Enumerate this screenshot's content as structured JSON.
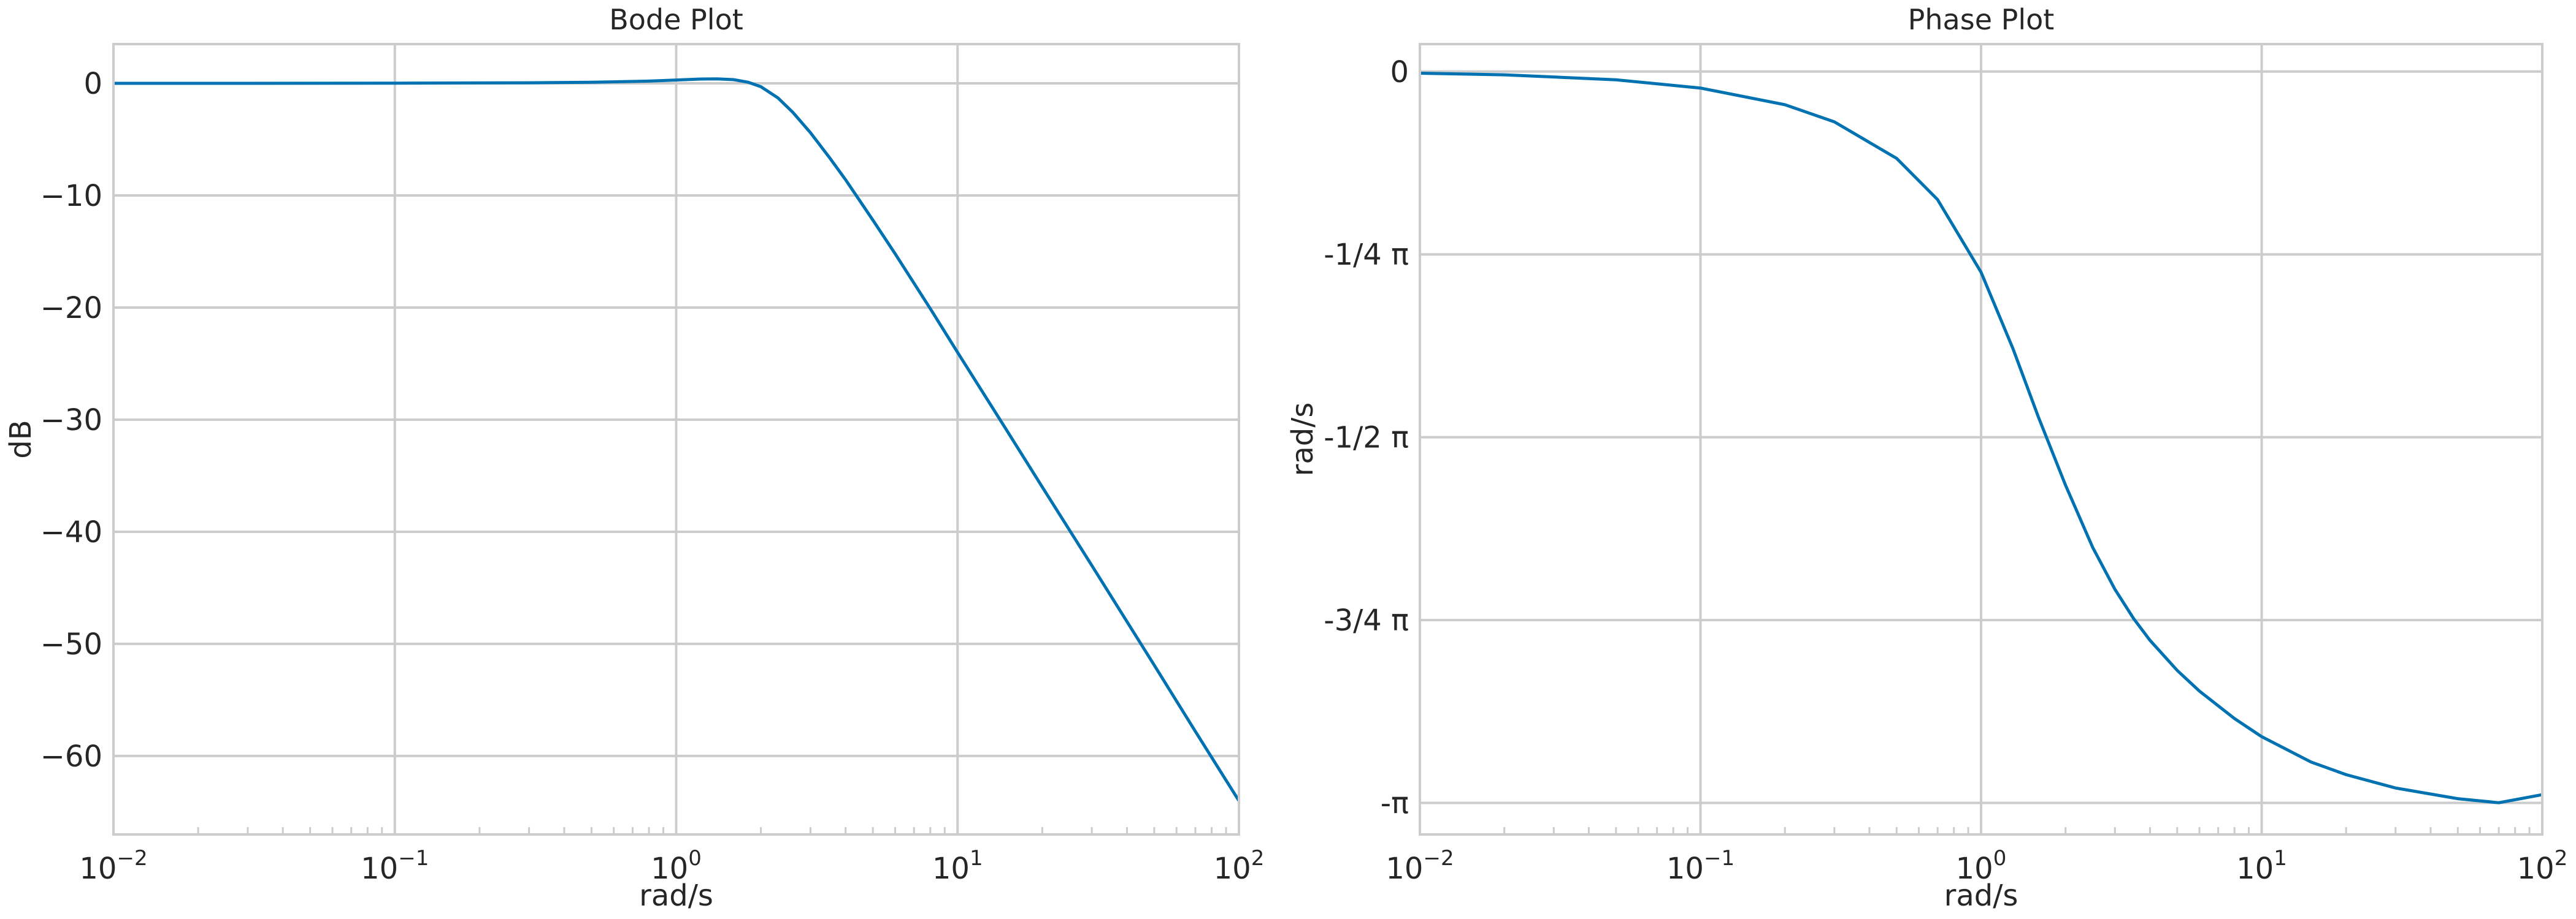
{
  "chart_data": [
    {
      "type": "line",
      "title": "Bode Plot",
      "xlabel": "rad/s",
      "ylabel": "dB",
      "xscale": "log",
      "xlim": [
        0.01,
        100
      ],
      "ylim": [
        -67,
        3.5
      ],
      "grid": true,
      "x_ticks": [
        {
          "value": 0.01,
          "base": "10",
          "exp": "−2"
        },
        {
          "value": 0.1,
          "base": "10",
          "exp": "−1"
        },
        {
          "value": 1,
          "base": "10",
          "exp": "0"
        },
        {
          "value": 10,
          "base": "10",
          "exp": "1"
        },
        {
          "value": 100,
          "base": "10",
          "exp": "2"
        }
      ],
      "y_ticks": [
        {
          "value": 0,
          "label": "0"
        },
        {
          "value": -10,
          "label": "−10"
        },
        {
          "value": -20,
          "label": "−20"
        },
        {
          "value": -30,
          "label": "−30"
        },
        {
          "value": -40,
          "label": "−40"
        },
        {
          "value": -50,
          "label": "−50"
        },
        {
          "value": -60,
          "label": "−60"
        }
      ],
      "series": [
        {
          "color": "#0072B2",
          "x": [
            0.01,
            0.03,
            0.1,
            0.3,
            0.5,
            0.8,
            1.0,
            1.2,
            1.4,
            1.6,
            1.8,
            2.0,
            2.3,
            2.6,
            3.0,
            3.5,
            4.0,
            5.0,
            6.0,
            8.0,
            10,
            15,
            20,
            30,
            50,
            70,
            100
          ],
          "y": [
            0.0,
            0.0,
            0.02,
            0.05,
            0.1,
            0.2,
            0.3,
            0.38,
            0.4,
            0.33,
            0.1,
            -0.3,
            -1.3,
            -2.6,
            -4.4,
            -6.6,
            -8.6,
            -12.2,
            -15.2,
            -20.1,
            -24.0,
            -31.0,
            -36.0,
            -43.0,
            -51.9,
            -57.8,
            -64.0
          ]
        }
      ]
    },
    {
      "type": "line",
      "title": "Phase Plot",
      "xlabel": "rad/s",
      "ylabel": "rad/s",
      "xscale": "log",
      "xlim": [
        0.01,
        100
      ],
      "ylim": [
        -3.2771,
        0.1178
      ],
      "grid": true,
      "x_ticks": [
        {
          "value": 0.01,
          "base": "10",
          "exp": "−2"
        },
        {
          "value": 0.1,
          "base": "10",
          "exp": "−1"
        },
        {
          "value": 1,
          "base": "10",
          "exp": "0"
        },
        {
          "value": 10,
          "base": "10",
          "exp": "1"
        },
        {
          "value": 100,
          "base": "10",
          "exp": "2"
        }
      ],
      "y_ticks": [
        {
          "value": 0,
          "label": "0"
        },
        {
          "value": -0.7854,
          "label": "-1/4 π"
        },
        {
          "value": -1.5708,
          "label": "-1/2 π"
        },
        {
          "value": -2.3562,
          "label": "-3/4 π"
        },
        {
          "value": -3.1416,
          "label": "-π"
        }
      ],
      "series": [
        {
          "color": "#0072B2",
          "x": [
            0.01,
            0.02,
            0.05,
            0.1,
            0.2,
            0.3,
            0.5,
            0.7,
            1.0,
            1.3,
            1.6,
            2.0,
            2.5,
            3.0,
            3.5,
            4.0,
            5.0,
            6.0,
            8.0,
            10,
            15,
            20,
            30,
            50,
            70,
            100
          ],
          "y": [
            -0.0071,
            -0.0141,
            -0.0354,
            -0.0708,
            -0.1425,
            -0.2161,
            -0.373,
            -0.55,
            -0.8622,
            -1.191,
            -1.4835,
            -1.7767,
            -2.0446,
            -2.2245,
            -2.3504,
            -2.4432,
            -2.5726,
            -2.6614,
            -2.7793,
            -2.8571,
            -2.9661,
            -3.0202,
            -3.0777,
            -3.1235,
            -3.1408,
            -3.1063
          ]
        }
      ]
    }
  ]
}
